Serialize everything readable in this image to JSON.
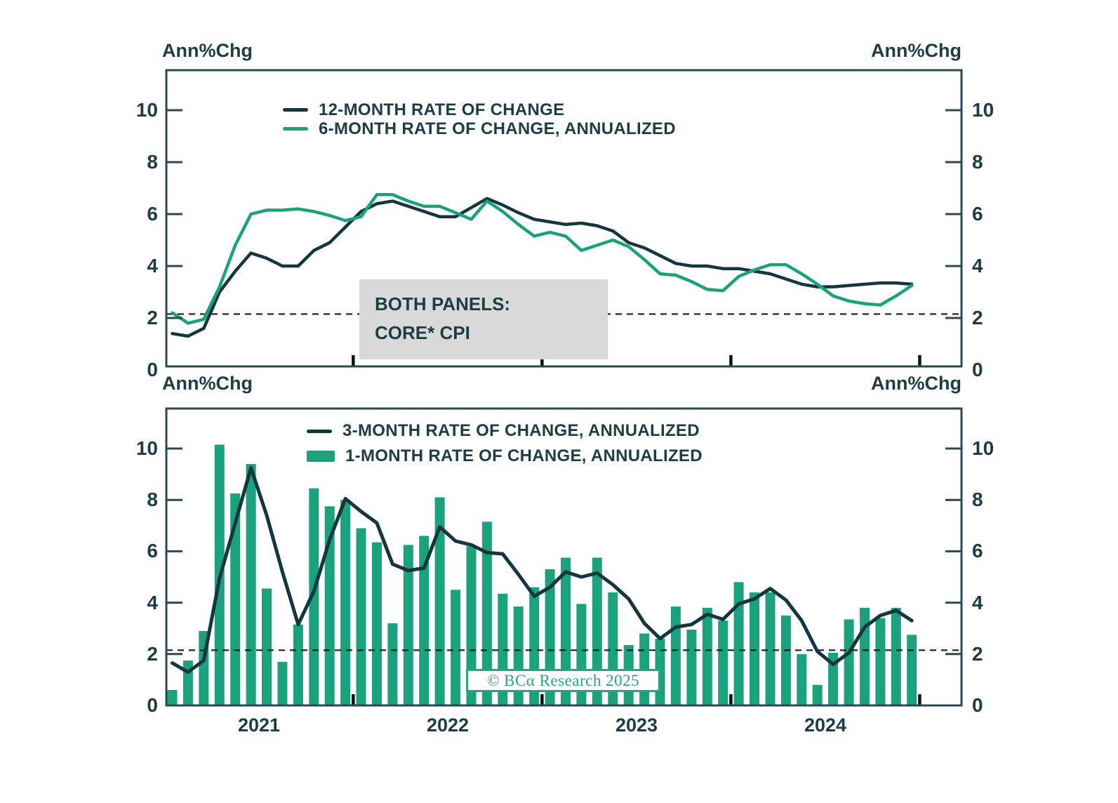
{
  "unit_label": "Ann%Chg",
  "colors": {
    "navy": "#14363f",
    "green": "#1ba27c",
    "text": "#1c3d45",
    "border": "#294a53",
    "dashed": "#1a1a1a",
    "annotation_bg": "#d9d9d9",
    "copyright_green": "#2ba37d"
  },
  "top_panel": {
    "legend": [
      {
        "label": "12-MONTH RATE OF CHANGE",
        "style": "line",
        "color": "#14363f"
      },
      {
        "label": "6-MONTH RATE OF CHANGE, ANNUALIZED",
        "style": "line",
        "color": "#1ba27c"
      }
    ]
  },
  "bottom_panel": {
    "legend": [
      {
        "label": "3-MONTH RATE OF CHANGE, ANNUALIZED",
        "style": "line",
        "color": "#14363f"
      },
      {
        "label": "1-MONTH RATE OF CHANGE, ANNUALIZED",
        "style": "bar",
        "color": "#1ba27c"
      }
    ]
  },
  "annotation_box": {
    "line1": "BOTH PANELS:",
    "line2": "CORE* CPI"
  },
  "copyright": "© BCα Research 2025",
  "chart_data": [
    {
      "type": "line",
      "panel": "top",
      "title": "Core CPI — 12-month vs 6-month annualized rate of change",
      "x_monthly_start": "2021-01",
      "x_monthly_end": "2024-12",
      "ylabel": "Ann%Chg",
      "ylim": [
        0,
        11.5
      ],
      "yticks": [
        0,
        2,
        4,
        6,
        8,
        10
      ],
      "dashed_reference_y": 2.15,
      "grid": "off",
      "legend_position": "top-inside",
      "series": [
        {
          "name": "12-MONTH RATE OF CHANGE",
          "render": "line",
          "color": "#14363f",
          "values": [
            1.4,
            1.3,
            1.6,
            3.0,
            3.8,
            4.5,
            4.3,
            4.0,
            4.0,
            4.6,
            4.9,
            5.5,
            6.1,
            6.4,
            6.5,
            6.3,
            6.1,
            5.9,
            5.9,
            6.25,
            6.6,
            6.35,
            6.05,
            5.8,
            5.7,
            5.6,
            5.65,
            5.55,
            5.35,
            4.9,
            4.7,
            4.4,
            4.1,
            4.0,
            4.0,
            3.9,
            3.9,
            3.8,
            3.7,
            3.5,
            3.3,
            3.2,
            3.2,
            3.25,
            3.3,
            3.35,
            3.35,
            3.3
          ]
        },
        {
          "name": "6-MONTH RATE OF CHANGE, ANNUALIZED",
          "render": "line",
          "color": "#1ba27c",
          "values": [
            2.2,
            1.8,
            1.95,
            3.2,
            4.8,
            6.0,
            6.15,
            6.15,
            6.2,
            6.1,
            5.95,
            5.75,
            5.9,
            6.75,
            6.75,
            6.5,
            6.3,
            6.3,
            6.05,
            5.8,
            6.5,
            6.1,
            5.6,
            5.15,
            5.3,
            5.15,
            4.6,
            4.8,
            5.0,
            4.75,
            4.25,
            3.7,
            3.65,
            3.4,
            3.1,
            3.05,
            3.6,
            3.85,
            4.05,
            4.05,
            3.7,
            3.3,
            2.85,
            2.65,
            2.55,
            2.5,
            2.85,
            3.25
          ]
        }
      ]
    },
    {
      "type": "bar",
      "panel": "bottom",
      "title": "Core CPI — 3-month annualized vs 1-month annualized rate of change",
      "x_monthly_start": "2021-01",
      "x_monthly_end": "2024-12",
      "categories_years": [
        "2021",
        "2022",
        "2023",
        "2024"
      ],
      "ylabel": "Ann%Chg",
      "ylim": [
        0,
        11.5
      ],
      "yticks": [
        0,
        2,
        4,
        6,
        8,
        10
      ],
      "dashed_reference_y": 2.15,
      "grid": "off",
      "legend_position": "top-inside",
      "series": [
        {
          "name": "1-MONTH RATE OF CHANGE, ANNUALIZED",
          "render": "bar",
          "color": "#1ba27c",
          "values": [
            0.6,
            1.75,
            2.9,
            10.15,
            8.25,
            9.4,
            4.55,
            1.7,
            3.15,
            8.45,
            7.75,
            8.0,
            6.9,
            6.35,
            3.2,
            6.25,
            6.6,
            8.1,
            4.5,
            6.2,
            7.15,
            4.35,
            3.85,
            4.6,
            5.3,
            5.75,
            3.95,
            5.75,
            4.4,
            2.35,
            2.8,
            2.6,
            3.85,
            2.95,
            3.8,
            3.3,
            4.8,
            4.4,
            4.4,
            3.5,
            2.0,
            0.8,
            2.05,
            3.35,
            3.8,
            3.4,
            3.8,
            2.75
          ]
        },
        {
          "name": "3-MONTH RATE OF CHANGE, ANNUALIZED",
          "render": "line",
          "color": "#14363f",
          "values": [
            1.65,
            1.3,
            1.75,
            4.95,
            7.1,
            9.25,
            7.4,
            5.2,
            3.15,
            4.45,
            6.45,
            8.05,
            7.55,
            7.1,
            5.5,
            5.25,
            5.35,
            6.95,
            6.4,
            6.25,
            5.95,
            5.9,
            5.1,
            4.25,
            4.6,
            5.2,
            5.0,
            5.15,
            4.7,
            4.15,
            3.2,
            2.6,
            3.05,
            3.15,
            3.55,
            3.35,
            3.95,
            4.15,
            4.55,
            4.1,
            3.3,
            2.1,
            1.6,
            2.05,
            3.05,
            3.5,
            3.7,
            3.3
          ]
        }
      ]
    }
  ]
}
